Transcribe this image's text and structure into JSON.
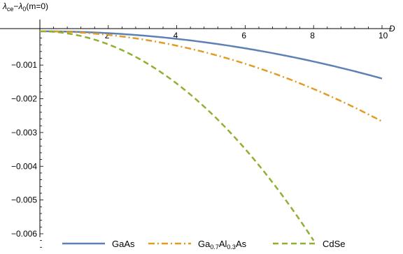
{
  "chart_data": {
    "type": "line",
    "ylabel_parts": {
      "a": "λ",
      "a_sub": "ce",
      "dash": "−",
      "b": "λ",
      "b_sub": "0",
      "tail": "(m=0)"
    },
    "xlabel": "D",
    "xlim": [
      0,
      10
    ],
    "ylim": [
      -0.0066,
      0.0001
    ],
    "x_ticks": [
      {
        "value": 2,
        "label": "2"
      },
      {
        "value": 4,
        "label": "4"
      },
      {
        "value": 6,
        "label": "6"
      },
      {
        "value": 8,
        "label": "8"
      },
      {
        "value": 10,
        "label": "10"
      }
    ],
    "y_ticks": [
      {
        "value": -0.001,
        "label": "−0.001"
      },
      {
        "value": -0.002,
        "label": "−0.002"
      },
      {
        "value": -0.003,
        "label": "−0.003"
      },
      {
        "value": -0.004,
        "label": "−0.004"
      },
      {
        "value": -0.005,
        "label": "−0.005"
      },
      {
        "value": -0.006,
        "label": "−0.006"
      }
    ],
    "series": [
      {
        "label_parts": {
          "main": "GaAs"
        },
        "color": "#5E81B5",
        "dash": "solid",
        "x": [
          0,
          1,
          2,
          3,
          4,
          5,
          6,
          7,
          8,
          9,
          10
        ],
        "y": [
          0,
          -1.4e-05,
          -5.6e-05,
          -0.000126,
          -0.000224,
          -0.00035,
          -0.000504,
          -0.000686,
          -0.000896,
          -0.001134,
          -0.0014
        ]
      },
      {
        "label_parts": {
          "main": "Ga",
          "sub1": "0.7",
          "mid": "Al",
          "sub2": "0.3",
          "tail": "As"
        },
        "color": "#E19C24",
        "dash": "dashdot",
        "x": [
          0,
          1,
          2,
          3,
          4,
          5,
          6,
          7,
          8,
          9,
          10
        ],
        "y": [
          0,
          -2.7e-05,
          -0.000107,
          -0.00024,
          -0.000427,
          -0.000667,
          -0.00096,
          -0.001307,
          -0.001707,
          -0.00216,
          -0.00267
        ]
      },
      {
        "label_parts": {
          "main": "CdSe"
        },
        "color": "#8FB032",
        "dash": "dashed",
        "x": [
          0,
          1,
          2,
          3,
          4,
          5,
          6,
          7,
          8
        ],
        "y": [
          0,
          -9.7e-05,
          -0.00039,
          -0.00087,
          -0.00155,
          -0.00242,
          -0.00349,
          -0.00475,
          -0.0062
        ]
      }
    ]
  }
}
